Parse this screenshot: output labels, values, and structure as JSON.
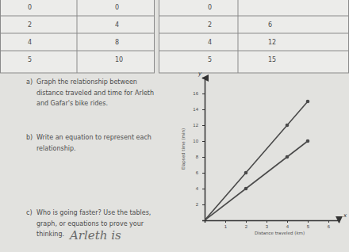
{
  "tables": [
    {
      "rows": [
        [
          "0",
          "0"
        ],
        [
          "2",
          "4"
        ],
        [
          "4",
          "8"
        ],
        [
          "5",
          "10"
        ]
      ]
    },
    {
      "rows": [
        [
          "0",
          null
        ],
        [
          "2",
          "6"
        ],
        [
          "4",
          "12"
        ],
        [
          "5",
          "15"
        ]
      ]
    }
  ],
  "questions": [
    {
      "label": "a)",
      "lines": [
        "Graph the relationship between",
        "distance traveled and time for Arleth",
        "and Gafar's bike rides."
      ]
    },
    {
      "label": "b)",
      "lines": [
        "Write an equation to represent each",
        "relationship."
      ]
    },
    {
      "label": "c)",
      "lines": [
        "Who is going faster? Use the tables,",
        "graph, or equations to prove your",
        "thinking."
      ]
    }
  ],
  "answer": "Arleth is",
  "chart_data": {
    "type": "line",
    "x_label": "Distance traveled (km)",
    "y_label": "Elapsed time (min)",
    "axis_letters": {
      "x": "x",
      "y": "y"
    },
    "x": [
      0,
      2,
      4,
      5
    ],
    "series": [
      {
        "values": [
          0,
          4,
          8,
          10
        ],
        "color": "#4a4a4a",
        "marker": "circle"
      },
      {
        "values": [
          0,
          6,
          12,
          15
        ],
        "color": "#4a4a4a",
        "marker": "circle"
      }
    ],
    "xlim": [
      0,
      6.5
    ],
    "ylim": [
      0,
      18
    ],
    "xticks": [
      1,
      2,
      3,
      4,
      5,
      6
    ],
    "yticks": [
      2,
      4,
      6,
      8,
      10,
      12,
      14,
      16
    ],
    "grid": false
  }
}
